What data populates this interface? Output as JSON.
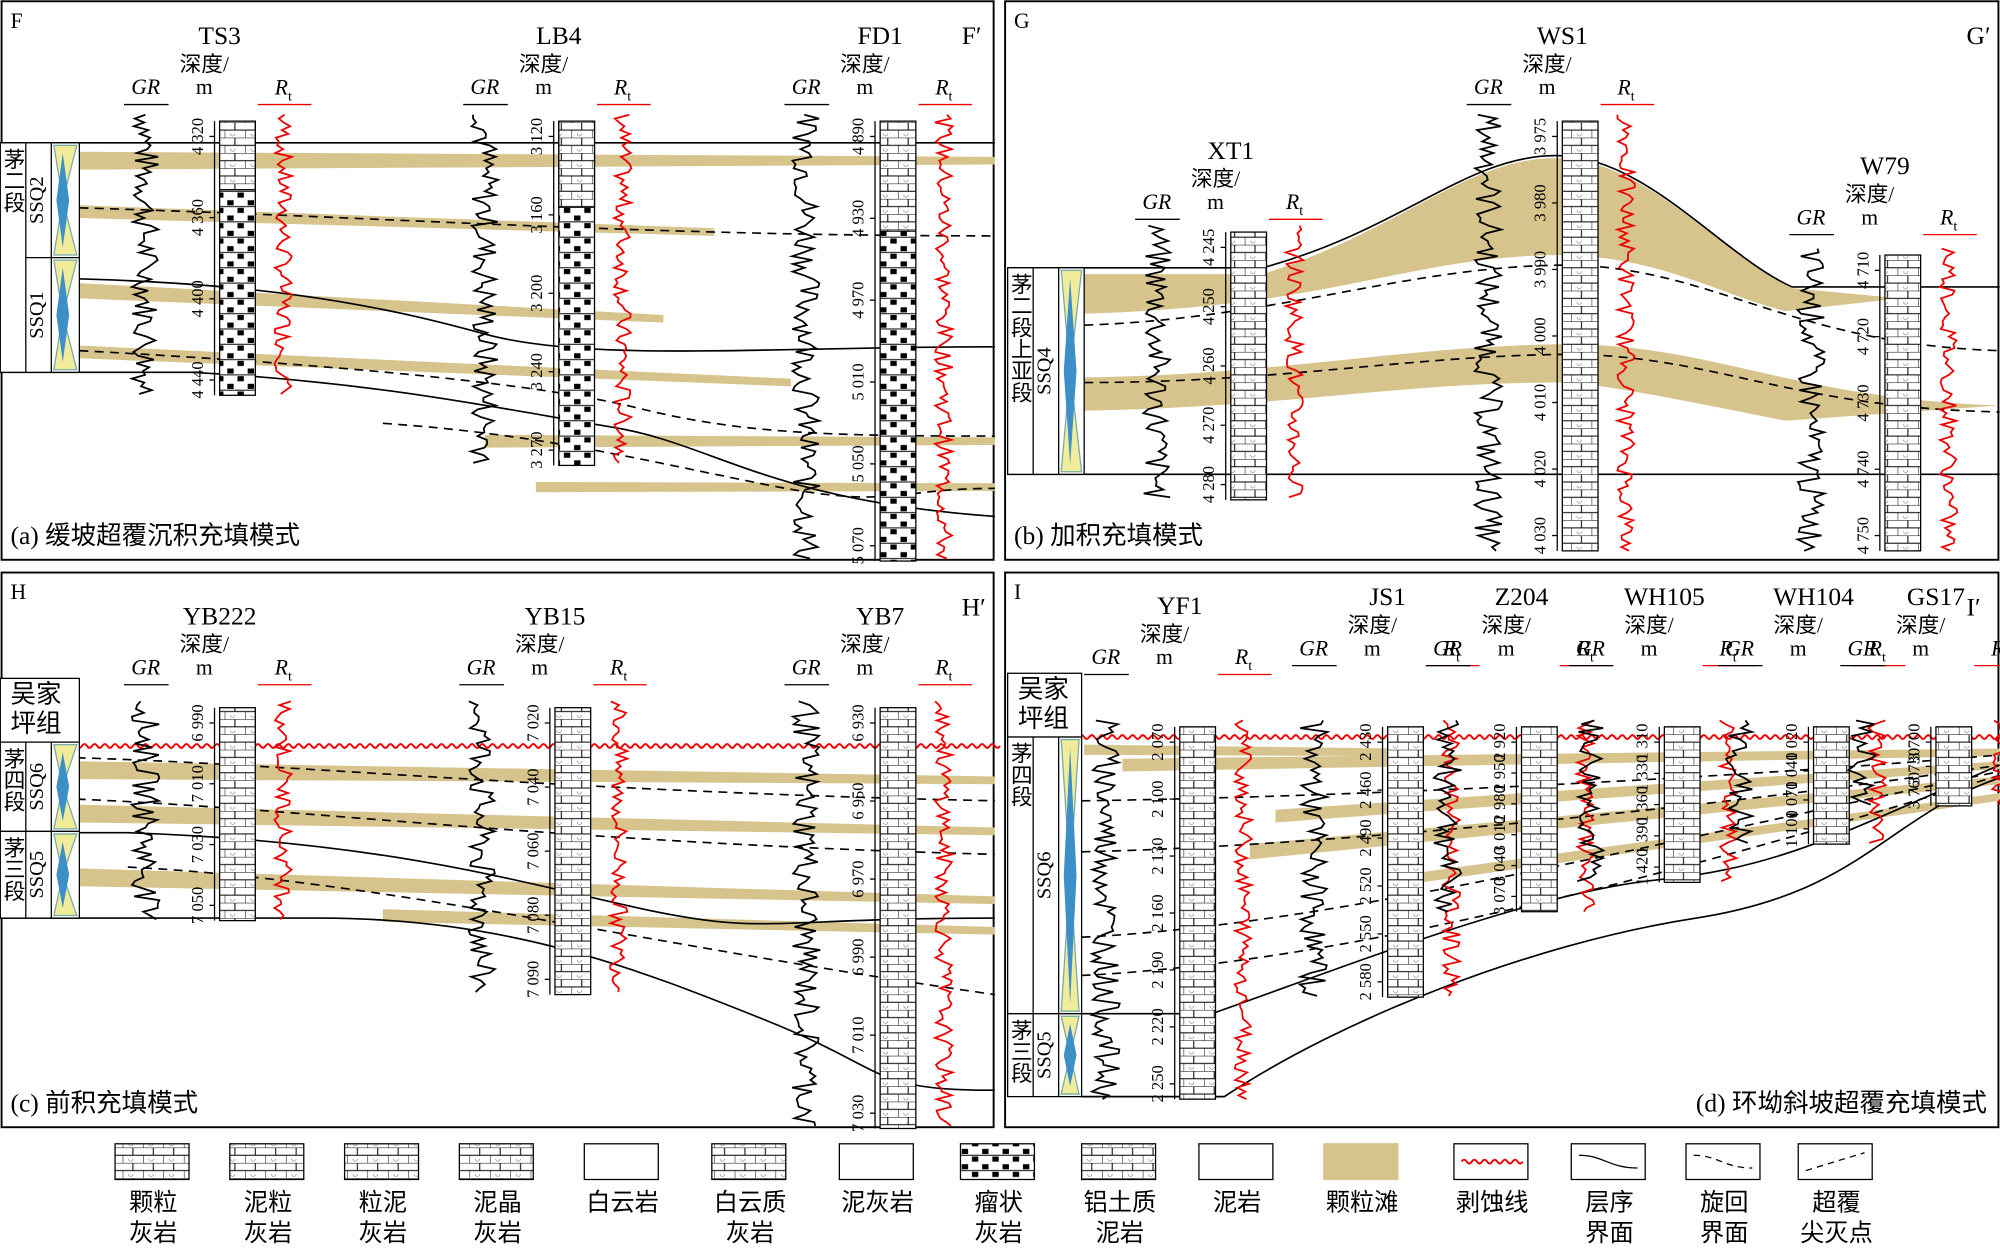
{
  "labels": {
    "gr": "GR",
    "depth": "深度/",
    "unit": "m",
    "rt_symbol": "R",
    "rt_subscript": "t"
  },
  "panels": [
    {
      "id_left": "F",
      "id_right": "F′",
      "caption": "(a) 缓坡超覆沉积充填模式",
      "strata": {
        "rows": [
          {
            "formation": "茅二段",
            "sequences": [
              "SSQ2",
              "SSQ1"
            ]
          }
        ]
      },
      "wells": [
        {
          "name": "TS3",
          "depths": [
            "4 320",
            "4 360",
            "4 400",
            "4 440"
          ]
        },
        {
          "name": "LB4",
          "depths": [
            "3 120",
            "3 160",
            "3 200",
            "3 240",
            "3 270"
          ]
        },
        {
          "name": "FD1",
          "depths": [
            "4 890",
            "4 930",
            "4 970",
            "5 010",
            "5 050",
            "5 070"
          ]
        }
      ]
    },
    {
      "id_left": "G",
      "id_right": "G′",
      "caption": "(b) 加积充填模式",
      "strata": {
        "rows": [
          {
            "formation": "茅二段上亚段",
            "sequences": [
              "SSQ4"
            ]
          }
        ]
      },
      "wells": [
        {
          "name": "XT1",
          "depths": [
            "4 245",
            "4 250",
            "4 260",
            "4 270",
            "4 280"
          ]
        },
        {
          "name": "WS1",
          "depths": [
            "3 975",
            "3 980",
            "3 990",
            "4 000",
            "4 010",
            "4 020",
            "4 030"
          ]
        },
        {
          "name": "W79",
          "depths": [
            "4 710",
            "4 720",
            "4 730",
            "4 740",
            "4 750"
          ]
        }
      ]
    },
    {
      "id_left": "H",
      "id_right": "H′",
      "caption": "(c) 前积充填模式",
      "strata": {
        "cap": "吴家坪组",
        "rows": [
          {
            "formation": "茅四段",
            "sequences": [
              "SSQ6"
            ]
          },
          {
            "formation": "茅三段",
            "sequences": [
              "SSQ5"
            ]
          }
        ]
      },
      "wells": [
        {
          "name": "YB222",
          "depths": [
            "6 990",
            "7 010",
            "7 030",
            "7 050"
          ]
        },
        {
          "name": "YB15",
          "depths": [
            "7 020",
            "7 040",
            "7 060",
            "7 080",
            "7 090"
          ]
        },
        {
          "name": "YB7",
          "depths": [
            "6 930",
            "6 950",
            "6 970",
            "6 990",
            "7 010",
            "7 030"
          ]
        }
      ]
    },
    {
      "id_left": "I",
      "id_right": "I′",
      "caption": "(d) 环坳斜坡超覆充填模式",
      "strata": {
        "cap": "吴家坪组",
        "rows": [
          {
            "formation": "茅四段",
            "sequences": [
              "SSQ6"
            ]
          },
          {
            "formation": "茅三段",
            "sequences": [
              "SSQ5"
            ]
          }
        ]
      },
      "wells": [
        {
          "name": "YF1",
          "depths": [
            "2 070",
            "2 100",
            "2 130",
            "2 160",
            "2 190",
            "2 220",
            "2 250"
          ]
        },
        {
          "name": "JS1",
          "depths": [
            "2 430",
            "2 460",
            "2 490",
            "2 520",
            "2 550",
            "2 580"
          ]
        },
        {
          "name": "Z204",
          "depths": [
            "2 920",
            "2 950",
            "2 980",
            "3 010",
            "3 040",
            "3 070"
          ]
        },
        {
          "name": "WH105",
          "depths": [
            "1 310",
            "1 330",
            "1 360",
            "1 390",
            "1 420"
          ]
        },
        {
          "name": "WH104",
          "depths": [
            "1 020",
            "1 040",
            "1 070",
            "1 100"
          ]
        },
        {
          "name": "GS17",
          "depths": [
            "3 700",
            "3 730",
            "3 760"
          ]
        }
      ]
    }
  ],
  "legend": [
    {
      "lines": [
        "颗粒",
        "灰岩"
      ]
    },
    {
      "lines": [
        "泥粒",
        "灰岩"
      ]
    },
    {
      "lines": [
        "粒泥",
        "灰岩"
      ]
    },
    {
      "lines": [
        "泥晶",
        "灰岩"
      ]
    },
    {
      "lines": [
        "白云岩"
      ]
    },
    {
      "lines": [
        "白云质",
        "灰岩"
      ]
    },
    {
      "lines": [
        "泥灰岩"
      ]
    },
    {
      "lines": [
        "瘤状",
        "灰岩"
      ]
    },
    {
      "lines": [
        "铝土质",
        "泥岩"
      ]
    },
    {
      "lines": [
        "泥岩"
      ]
    },
    {
      "lines": [
        "颗粒滩"
      ]
    },
    {
      "lines": [
        "剥蚀线"
      ]
    },
    {
      "lines": [
        "层序",
        "界面"
      ]
    },
    {
      "lines": [
        "旋回",
        "界面"
      ]
    },
    {
      "lines": [
        "超覆",
        "尖灭点"
      ]
    }
  ]
}
